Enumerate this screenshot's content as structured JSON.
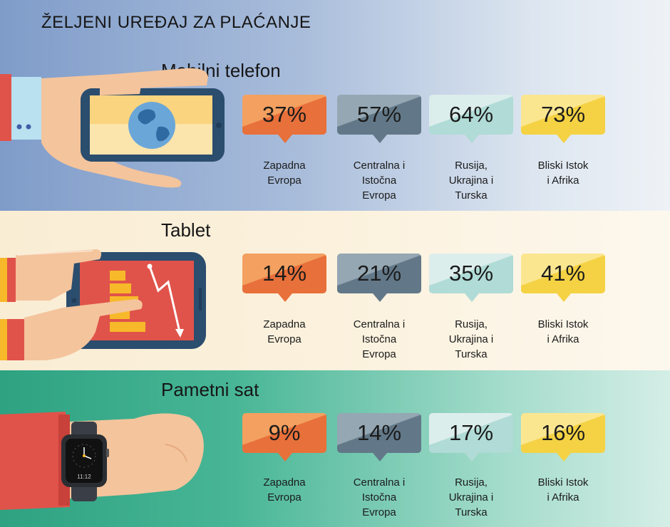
{
  "title": "ŽELJENI UREĐAJ ZA PLAĆANJE",
  "colors": {
    "zapadna": "#e8703a",
    "centralna": "#627888",
    "rusija": "#b0dbd6",
    "bliski": "#f4d244"
  },
  "chart_data": [
    {
      "type": "table",
      "title": "Mobilni telefon",
      "categories": [
        "Zapadna Evropa",
        "Centralna i Istočna Evropa",
        "Rusija, Ukrajina i Turska",
        "Bliski Istok i Afrika"
      ],
      "values": [
        37,
        57,
        64,
        73
      ],
      "labels": [
        "37%",
        "57%",
        "64%",
        "73%"
      ],
      "region_lines": [
        [
          "Zapadna",
          "Evropa"
        ],
        [
          "Centralna i",
          "Istočna",
          "Evropa"
        ],
        [
          "Rusija,",
          "Ukrajina i",
          "Turska"
        ],
        [
          "Bliski Istok",
          "i Afrika"
        ]
      ]
    },
    {
      "type": "table",
      "title": "Tablet",
      "categories": [
        "Zapadna Evropa",
        "Centralna i Istočna Evropa",
        "Rusija, Ukrajina i Turska",
        "Bliski Istok i Afrika"
      ],
      "values": [
        14,
        21,
        35,
        41
      ],
      "labels": [
        "14%",
        "21%",
        "35%",
        "41%"
      ],
      "region_lines": [
        [
          "Zapadna",
          "Evropa"
        ],
        [
          "Centralna i",
          "Istočna",
          "Evropa"
        ],
        [
          "Rusija,",
          "Ukrajina i",
          "Turska"
        ],
        [
          "Bliski Istok",
          "i Afrika"
        ]
      ]
    },
    {
      "type": "table",
      "title": "Pametni sat",
      "categories": [
        "Zapadna Evropa",
        "Centralna i Istočna Evropa",
        "Rusija, Ukrajina i Turska",
        "Bliski Istok i Afrika"
      ],
      "values": [
        9,
        14,
        17,
        16
      ],
      "labels": [
        "9%",
        "14%",
        "17%",
        "16%"
      ],
      "region_lines": [
        [
          "Zapadna",
          "Evropa"
        ],
        [
          "Centralna i",
          "Istočna",
          "Evropa"
        ],
        [
          "Rusija,",
          "Ukrajina i",
          "Turska"
        ],
        [
          "Bliski Istok",
          "i Afrika"
        ]
      ]
    }
  ],
  "watch": {
    "time": "11:12"
  },
  "icons": [
    "globe-icon",
    "bar-chart-icon",
    "trend-arrow-icon",
    "watch-face-icon"
  ]
}
